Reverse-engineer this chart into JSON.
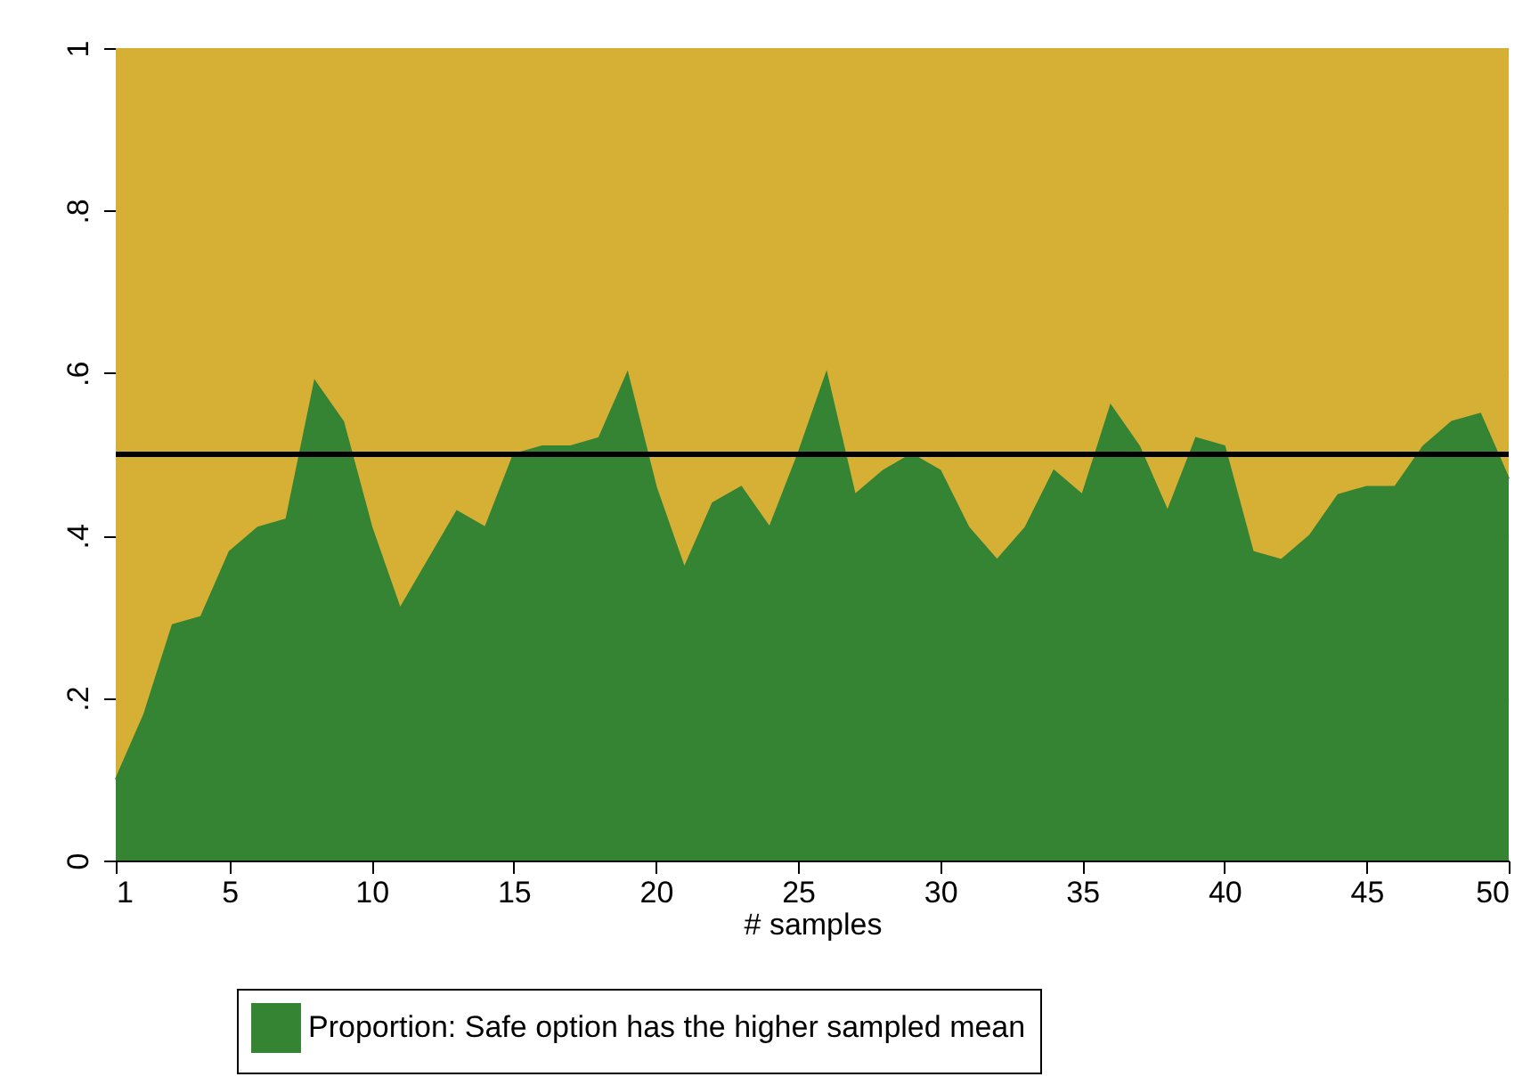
{
  "chart_data": {
    "type": "area",
    "xlabel": "# samples",
    "x": [
      1,
      2,
      3,
      4,
      5,
      6,
      7,
      8,
      9,
      10,
      11,
      12,
      13,
      14,
      15,
      16,
      17,
      18,
      19,
      20,
      21,
      22,
      23,
      24,
      25,
      26,
      27,
      28,
      29,
      30,
      31,
      32,
      33,
      34,
      35,
      36,
      37,
      38,
      39,
      40,
      41,
      42,
      43,
      44,
      45,
      46,
      47,
      48,
      49,
      50
    ],
    "series": [
      {
        "name": "Proportion: Safe option has the higher sampled mean",
        "color": "#348434",
        "values": [
          0.1,
          0.18,
          0.29,
          0.3,
          0.38,
          0.41,
          0.42,
          0.59,
          0.54,
          0.41,
          0.31,
          0.37,
          0.43,
          0.41,
          0.5,
          0.51,
          0.51,
          0.52,
          0.6,
          0.46,
          0.36,
          0.44,
          0.46,
          0.41,
          0.5,
          0.6,
          0.45,
          0.48,
          0.5,
          0.48,
          0.41,
          0.37,
          0.41,
          0.48,
          0.45,
          0.56,
          0.51,
          0.43,
          0.52,
          0.51,
          0.38,
          0.37,
          0.4,
          0.45,
          0.46,
          0.46,
          0.51,
          0.54,
          0.55,
          0.47
        ]
      }
    ],
    "bands": [
      {
        "axis": "y",
        "from": 0,
        "to": 1,
        "color": "#d6b035"
      }
    ],
    "ref_lines": [
      {
        "axis": "y",
        "value": 0.5,
        "color": "#000000"
      }
    ],
    "xlim": [
      1,
      50
    ],
    "xticks": [
      1,
      5,
      10,
      15,
      20,
      25,
      30,
      35,
      40,
      45,
      50
    ],
    "ylim": [
      0,
      1
    ],
    "yticks": [
      0,
      {
        "value": 0.2,
        "label": ".2"
      },
      {
        "value": 0.4,
        "label": ".4"
      },
      {
        "value": 0.6,
        "label": ".6"
      },
      {
        "value": 0.8,
        "label": ".8"
      },
      1
    ],
    "grid": "y",
    "legend": "bottom"
  }
}
